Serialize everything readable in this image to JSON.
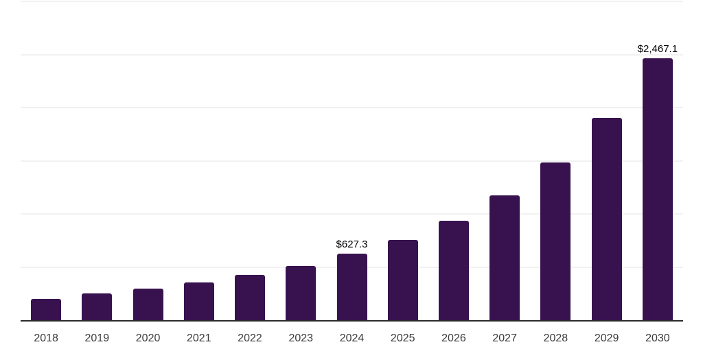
{
  "chart_data": {
    "type": "bar",
    "title": "",
    "xlabel": "",
    "ylabel": "",
    "categories": [
      "2018",
      "2019",
      "2020",
      "2021",
      "2022",
      "2023",
      "2024",
      "2025",
      "2026",
      "2027",
      "2028",
      "2029",
      "2030"
    ],
    "values": [
      203,
      250,
      297,
      357,
      425,
      511,
      627.3,
      756,
      936,
      1173,
      1487,
      1906,
      2467.1
    ],
    "value_labels": [
      "",
      "",
      "",
      "",
      "",
      "",
      "$627.3",
      "",
      "",
      "",
      "",
      "",
      "$2,467.1"
    ],
    "ylim": [
      0,
      3000
    ],
    "gridline_values": [
      500,
      1000,
      1500,
      2000,
      2500,
      3000
    ],
    "grid": true,
    "legend_position": "none",
    "colors": {
      "bar": "#38124F",
      "gridline": "#f1f1f1",
      "axis_line": "#2a2a2a",
      "tick_label": "#3b3b3b",
      "data_label": "#000000",
      "background": "#ffffff"
    }
  }
}
